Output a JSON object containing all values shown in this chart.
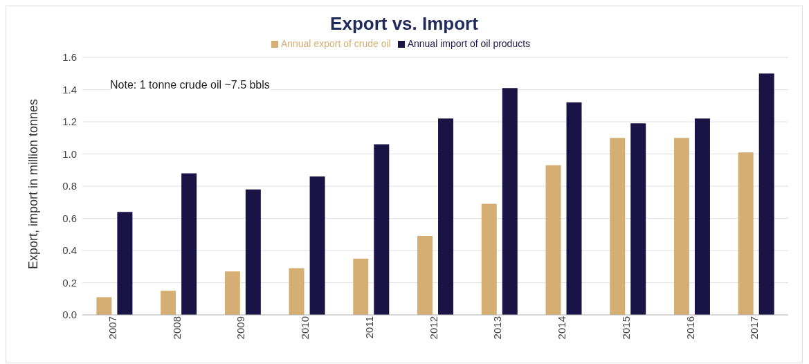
{
  "chart_data": {
    "type": "bar",
    "title": "Export vs. Import",
    "ylabel": "Export, import in million tonnes",
    "categories": [
      "2007",
      "2008",
      "2009",
      "2010",
      "2011",
      "2012",
      "2013",
      "2014",
      "2015",
      "2016",
      "2017"
    ],
    "series": [
      {
        "name": "Annual export of crude oil",
        "color": "#d4ae72",
        "values": [
          0.11,
          0.15,
          0.27,
          0.29,
          0.35,
          0.49,
          0.69,
          0.93,
          1.1,
          1.1,
          1.01
        ]
      },
      {
        "name": "Annual import of oil products",
        "color": "#1a1446",
        "values": [
          0.64,
          0.88,
          0.78,
          0.86,
          1.06,
          1.22,
          1.41,
          1.32,
          1.19,
          1.22,
          1.5
        ]
      }
    ],
    "ylim": [
      0,
      1.6
    ],
    "yticks": [
      {
        "value": 0,
        "label": "0.0"
      },
      0.2,
      0.4,
      0.6,
      0.8,
      {
        "value": 1,
        "label": "1.0"
      },
      1.2,
      1.4,
      1.6
    ],
    "grid": "y",
    "legend": "top",
    "annotations": [
      "Note: 1 tonne crude oil ~7.5 bbls"
    ]
  }
}
